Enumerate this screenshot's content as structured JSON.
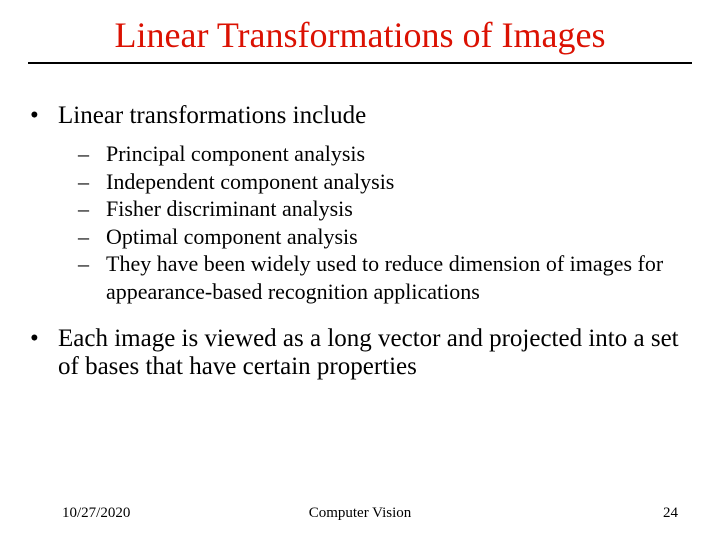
{
  "title": "Linear Transformations of Images",
  "bullets": {
    "b1": "Linear transformations include",
    "sub": [
      "Principal component analysis",
      "Independent component analysis",
      "Fisher discriminant analysis",
      "Optimal component analysis",
      "They have been widely used to reduce dimension of images for appearance-based recognition applications"
    ],
    "b2": "Each image is viewed as a long vector and projected into a set of bases that have certain properties"
  },
  "footer": {
    "date": "10/27/2020",
    "center": "Computer Vision",
    "page": "24"
  },
  "colors": {
    "title": "#db1102",
    "text": "#000000",
    "background": "#ffffff",
    "underline": "#000000"
  },
  "typography": {
    "title_fontsize": 36,
    "l1_fontsize": 25,
    "l2_fontsize": 22,
    "footer_fontsize": 15,
    "font_family": "Times New Roman"
  }
}
